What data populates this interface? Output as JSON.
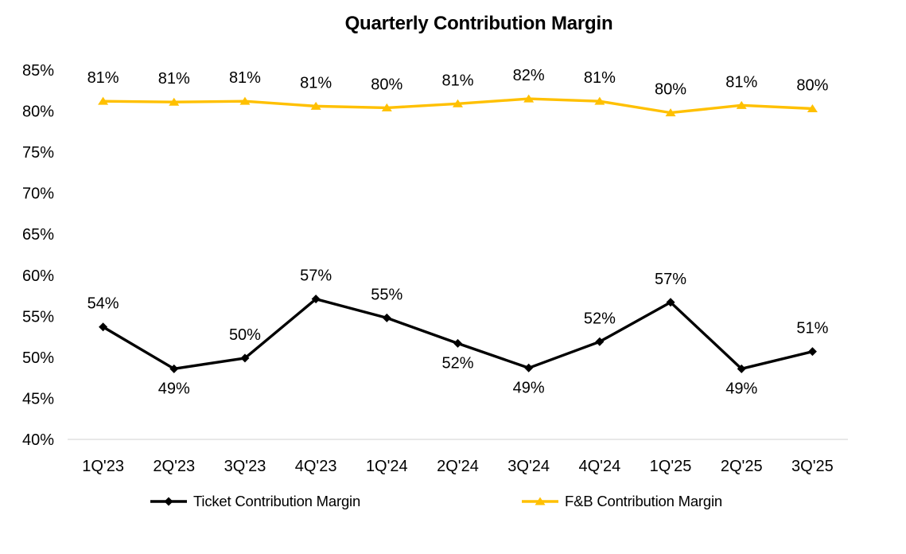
{
  "chart_data": {
    "type": "line",
    "title": "Quarterly Contribution Margin",
    "categories": [
      "1Q'23",
      "2Q'23",
      "3Q'23",
      "4Q'23",
      "1Q'24",
      "2Q'24",
      "3Q'24",
      "4Q'24",
      "1Q'25",
      "2Q'25",
      "3Q'25"
    ],
    "series": [
      {
        "name": "Ticket Contribution Margin",
        "color": "#000000",
        "marker": "diamond",
        "values": [
          53.7,
          48.6,
          49.9,
          57.1,
          54.8,
          51.7,
          48.7,
          51.9,
          56.7,
          48.6,
          50.7
        ],
        "labels": [
          "54%",
          "49%",
          "50%",
          "57%",
          "55%",
          "52%",
          "49%",
          "52%",
          "57%",
          "49%",
          "51%"
        ],
        "label_positions": [
          "above",
          "below",
          "above",
          "above",
          "above",
          "below",
          "below",
          "above",
          "above",
          "below",
          "above"
        ]
      },
      {
        "name": "F&B Contribution Margin",
        "color": "#FFC000",
        "marker": "triangle",
        "values": [
          81.2,
          81.1,
          81.2,
          80.6,
          80.4,
          80.9,
          81.5,
          81.2,
          79.8,
          80.7,
          80.3
        ],
        "labels": [
          "81%",
          "81%",
          "81%",
          "81%",
          "80%",
          "81%",
          "82%",
          "81%",
          "80%",
          "81%",
          "80%"
        ],
        "label_positions": [
          "above",
          "above",
          "above",
          "above",
          "above",
          "above",
          "above",
          "above",
          "above",
          "above",
          "above"
        ]
      }
    ],
    "y_axis": {
      "min": 40,
      "max": 85,
      "step": 5,
      "tick_labels": [
        "40%",
        "45%",
        "50%",
        "55%",
        "60%",
        "65%",
        "70%",
        "75%",
        "80%",
        "85%"
      ],
      "format": "percent"
    },
    "x_axis": {
      "label": ""
    },
    "grid": false,
    "legend_position": "bottom",
    "colors": {
      "background": "#FFFFFF",
      "axis_line": "#D9D9D9",
      "text": "#000000"
    }
  }
}
